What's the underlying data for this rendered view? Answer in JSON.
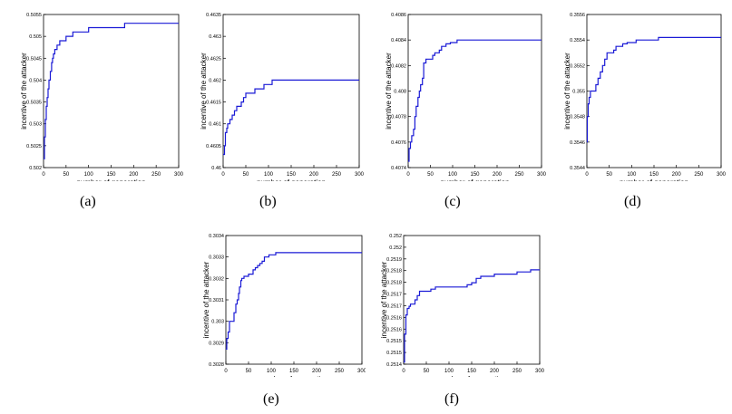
{
  "ylabel": "incentive of the attacker",
  "xlabel": "number of generation",
  "line_color": "#1a1ad6",
  "chart_data": [
    {
      "type": "line",
      "caption": "(a)",
      "xlim": [
        0,
        300
      ],
      "ylim": [
        0.502,
        0.5055
      ],
      "xticks": [
        "0",
        "50",
        "100",
        "150",
        "200",
        "250",
        "300"
      ],
      "yticks": [
        "0.502",
        "0.5025",
        "0.503",
        "0.5035",
        "0.504",
        "0.5045",
        "0.505",
        "0.5055"
      ],
      "x": [
        0,
        2,
        4,
        6,
        8,
        10,
        12,
        15,
        18,
        20,
        22,
        25,
        28,
        30,
        33,
        36,
        40,
        45,
        50,
        55,
        60,
        65,
        70,
        80,
        90,
        100,
        110,
        120,
        130,
        150,
        180,
        300
      ],
      "y": [
        0.5022,
        0.5027,
        0.5031,
        0.5034,
        0.5036,
        0.5038,
        0.504,
        0.5042,
        0.5044,
        0.5045,
        0.5046,
        0.5047,
        0.5047,
        0.5048,
        0.5048,
        0.5049,
        0.5049,
        0.5049,
        0.505,
        0.505,
        0.505,
        0.5051,
        0.5051,
        0.5051,
        0.5051,
        0.5052,
        0.5052,
        0.5052,
        0.5052,
        0.5052,
        0.5053,
        0.5053
      ]
    },
    {
      "type": "line",
      "caption": "(b)",
      "xlim": [
        0,
        300
      ],
      "ylim": [
        0.46,
        0.4635
      ],
      "xticks": [
        "0",
        "50",
        "100",
        "150",
        "200",
        "250",
        "300"
      ],
      "yticks": [
        "0.46",
        "0.4605",
        "0.461",
        "0.4615",
        "0.462",
        "0.4625",
        "0.463",
        "0.4635"
      ],
      "x": [
        0,
        3,
        5,
        8,
        10,
        15,
        20,
        25,
        30,
        35,
        40,
        45,
        50,
        55,
        60,
        65,
        70,
        80,
        90,
        100,
        105,
        108,
        150,
        200,
        300
      ],
      "y": [
        0.4603,
        0.4605,
        0.4608,
        0.4609,
        0.461,
        0.4611,
        0.4612,
        0.4613,
        0.4614,
        0.4614,
        0.4615,
        0.4616,
        0.4617,
        0.4617,
        0.4617,
        0.4617,
        0.4618,
        0.4618,
        0.4619,
        0.4619,
        0.4619,
        0.462,
        0.462,
        0.462,
        0.462
      ]
    },
    {
      "type": "line",
      "caption": "(c)",
      "xlim": [
        0,
        300
      ],
      "ylim": [
        0.4074,
        0.4086
      ],
      "xticks": [
        "0",
        "50",
        "100",
        "150",
        "200",
        "250",
        "300"
      ],
      "yticks": [
        "0.4074",
        "0.4076",
        "0.4078",
        "0.408",
        "0.4082",
        "0.4084",
        "0.4086"
      ],
      "x": [
        0,
        2,
        5,
        8,
        12,
        15,
        18,
        22,
        25,
        28,
        32,
        35,
        40,
        45,
        50,
        55,
        60,
        65,
        70,
        75,
        80,
        85,
        90,
        95,
        100,
        110,
        130,
        150,
        200,
        300
      ],
      "y": [
        0.40745,
        0.40755,
        0.4076,
        0.40765,
        0.4077,
        0.4078,
        0.40788,
        0.40795,
        0.408,
        0.40805,
        0.4081,
        0.40822,
        0.40825,
        0.40825,
        0.40825,
        0.40828,
        0.4083,
        0.4083,
        0.40832,
        0.40835,
        0.40835,
        0.40837,
        0.40837,
        0.40838,
        0.40838,
        0.4084,
        0.4084,
        0.4084,
        0.4084,
        0.4084
      ]
    },
    {
      "type": "line",
      "caption": "(d)",
      "xlim": [
        0,
        300
      ],
      "ylim": [
        0.3544,
        0.3556
      ],
      "xticks": [
        "0",
        "50",
        "100",
        "150",
        "200",
        "250",
        "300"
      ],
      "yticks": [
        "0.3544",
        "0.3546",
        "0.3548",
        "0.355",
        "0.3552",
        "0.3554",
        "0.3556"
      ],
      "x": [
        0,
        1,
        3,
        5,
        8,
        12,
        15,
        20,
        25,
        30,
        35,
        40,
        45,
        50,
        55,
        60,
        65,
        70,
        80,
        90,
        100,
        110,
        120,
        140,
        160,
        200,
        300
      ],
      "y": [
        0.3546,
        0.3548,
        0.3549,
        0.35495,
        0.355,
        0.355,
        0.355,
        0.35505,
        0.3551,
        0.35515,
        0.3552,
        0.35525,
        0.3553,
        0.3553,
        0.3553,
        0.35532,
        0.35535,
        0.35535,
        0.35537,
        0.35538,
        0.35538,
        0.3554,
        0.3554,
        0.3554,
        0.35542,
        0.35542,
        0.35542
      ]
    },
    {
      "type": "line",
      "caption": "(e)",
      "xlim": [
        0,
        300
      ],
      "ylim": [
        0.3028,
        0.3034
      ],
      "xticks": [
        "0",
        "50",
        "100",
        "150",
        "200",
        "250",
        "300"
      ],
      "yticks": [
        "0.3028",
        "0.3029",
        "0.303",
        "0.3031",
        "0.3032",
        "0.3033",
        "0.3034"
      ],
      "x": [
        0,
        2,
        5,
        8,
        12,
        15,
        18,
        22,
        25,
        28,
        30,
        33,
        35,
        40,
        45,
        50,
        55,
        60,
        65,
        70,
        75,
        80,
        85,
        90,
        95,
        100,
        110,
        120,
        140,
        160,
        200,
        300
      ],
      "y": [
        0.30287,
        0.30292,
        0.30295,
        0.303,
        0.303,
        0.303,
        0.30304,
        0.30308,
        0.3031,
        0.30313,
        0.30316,
        0.30319,
        0.3032,
        0.30321,
        0.30321,
        0.30322,
        0.30322,
        0.30324,
        0.30325,
        0.30326,
        0.30327,
        0.30328,
        0.3033,
        0.3033,
        0.30331,
        0.30331,
        0.30332,
        0.30332,
        0.30332,
        0.30332,
        0.30332,
        0.30332
      ]
    },
    {
      "type": "line",
      "caption": "(f)",
      "xlim": [
        0,
        300
      ],
      "ylim": [
        0.2514,
        0.252
      ],
      "xticks": [
        "0",
        "50",
        "100",
        "150",
        "200",
        "250",
        "300"
      ],
      "yticks": [
        "0.2514",
        "0.2515",
        "0.2515",
        "0.2516",
        "0.2516",
        "0.2517",
        "0.2517",
        "0.2518",
        "0.2518",
        "0.2519",
        "0.252",
        "0.252"
      ],
      "x": [
        0,
        2,
        5,
        8,
        12,
        15,
        20,
        25,
        30,
        35,
        40,
        50,
        60,
        70,
        80,
        100,
        120,
        140,
        150,
        160,
        170,
        180,
        200,
        220,
        250,
        280,
        300
      ],
      "y": [
        0.25141,
        0.25154,
        0.25163,
        0.25166,
        0.25167,
        0.25168,
        0.25168,
        0.2517,
        0.25172,
        0.25174,
        0.25174,
        0.25174,
        0.25175,
        0.25176,
        0.25176,
        0.25176,
        0.25176,
        0.25177,
        0.25178,
        0.2518,
        0.25181,
        0.25181,
        0.25182,
        0.25182,
        0.25183,
        0.25184,
        0.25184
      ]
    }
  ]
}
